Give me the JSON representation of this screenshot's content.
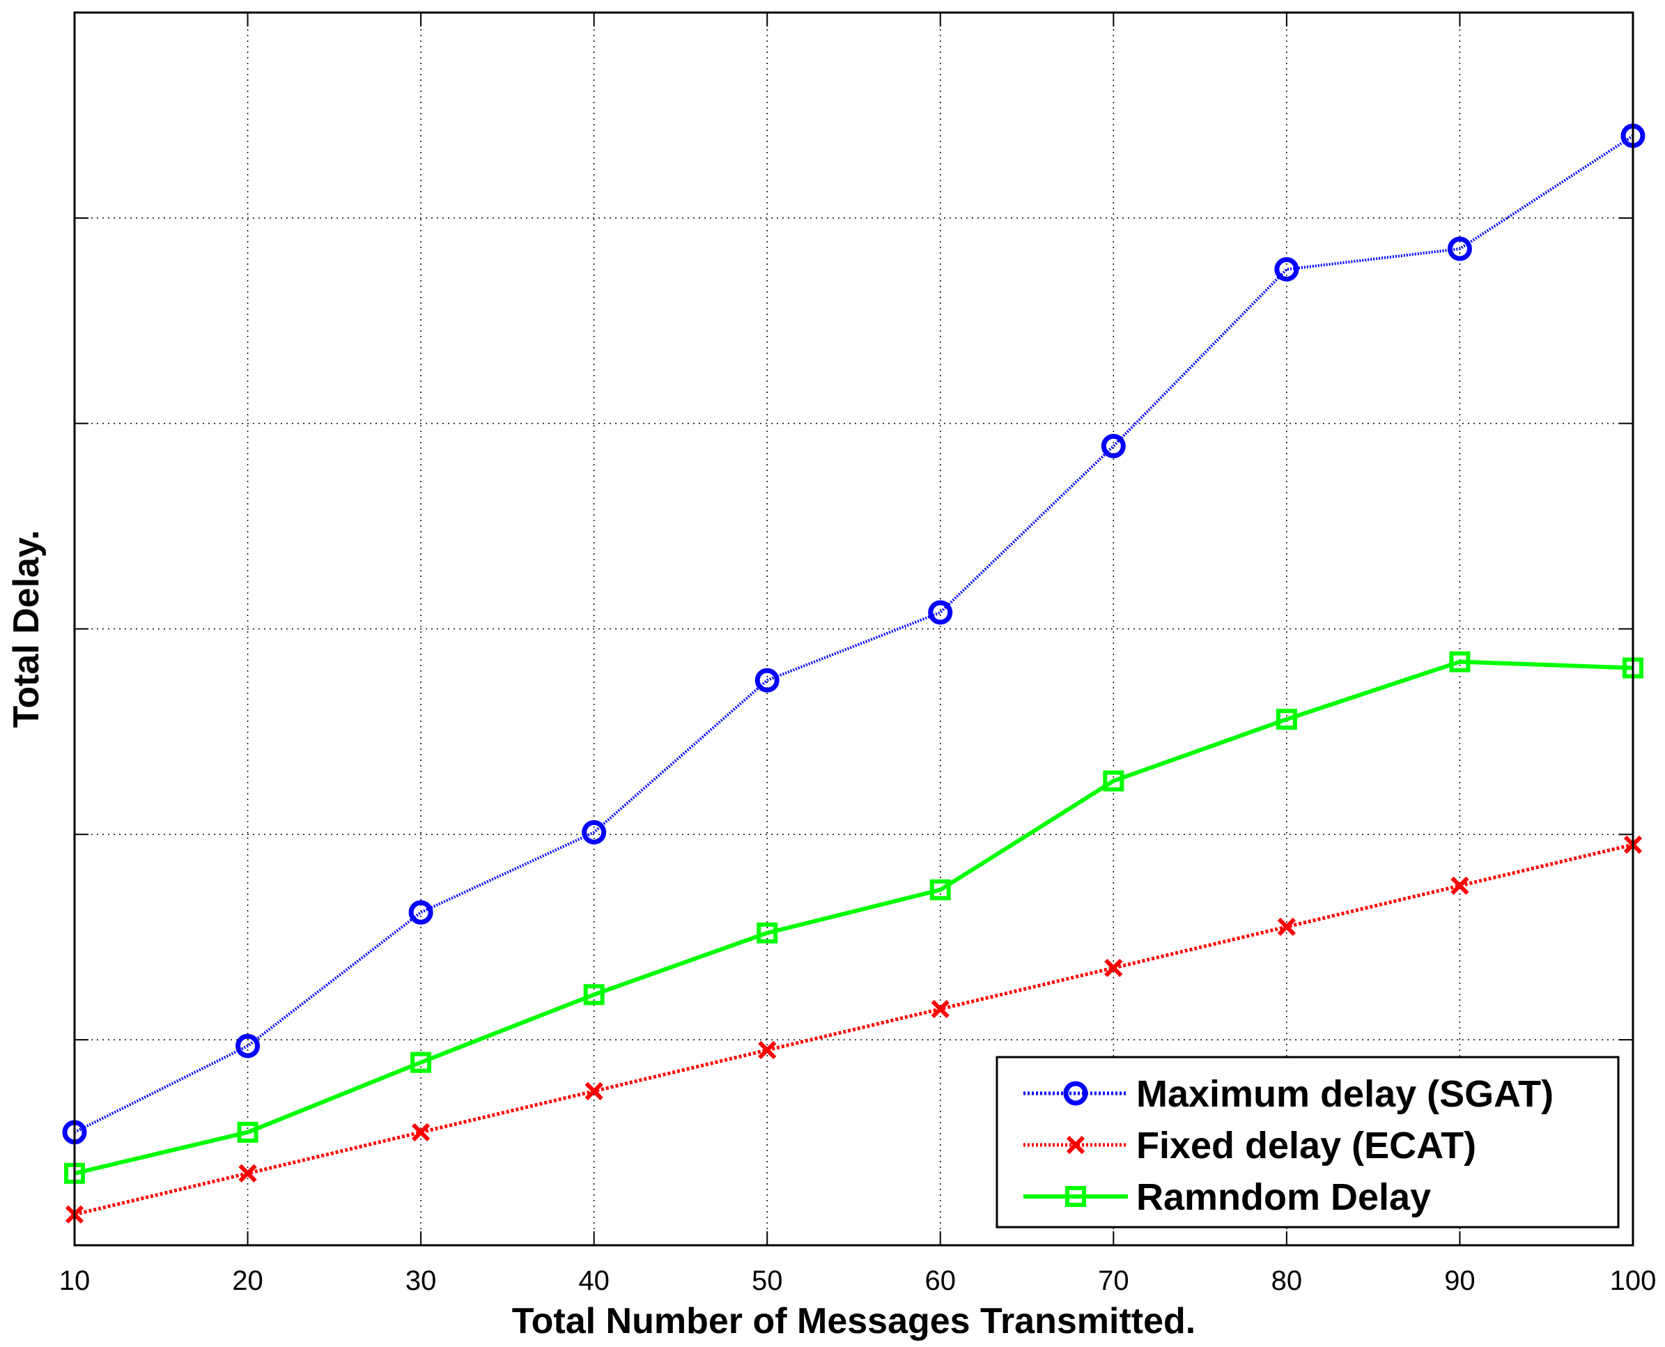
{
  "chart_data": {
    "type": "line",
    "title": "",
    "xlabel": "Total Number of Messages Transmitted.",
    "ylabel": "Total Delay.",
    "xlim": [
      10,
      100
    ],
    "ylim": [
      0,
      6
    ],
    "x_ticks": [
      10,
      20,
      30,
      40,
      50,
      60,
      70,
      80,
      90,
      100
    ],
    "x_tick_labels": [
      "10",
      "20",
      "30",
      "40",
      "50",
      "60",
      "70",
      "80",
      "90",
      "100"
    ],
    "y_ticks": [
      1,
      2,
      3,
      4,
      5
    ],
    "y_tick_labels_visible": false,
    "grid": true,
    "legend_position": "bottom-right",
    "x": [
      10,
      20,
      30,
      40,
      50,
      60,
      70,
      80,
      90,
      100
    ],
    "series": [
      {
        "name": "Maximum delay (SGAT)",
        "color": "#0000ff",
        "line_style": "dotted",
        "marker": "circle",
        "values": [
          0.55,
          0.97,
          1.62,
          2.01,
          2.75,
          3.08,
          3.89,
          4.75,
          4.85,
          5.4
        ]
      },
      {
        "name": "Fixed delay (ECAT)",
        "color": "#ff0000",
        "line_style": "dotted",
        "marker": "x",
        "values": [
          0.15,
          0.35,
          0.55,
          0.75,
          0.95,
          1.15,
          1.35,
          1.55,
          1.75,
          1.95
        ]
      },
      {
        "name": "Ramndom Delay",
        "color": "#00ff00",
        "line_style": "solid",
        "marker": "square",
        "values": [
          0.35,
          0.55,
          0.89,
          1.22,
          1.52,
          1.73,
          2.26,
          2.56,
          2.84,
          2.81
        ]
      }
    ]
  }
}
